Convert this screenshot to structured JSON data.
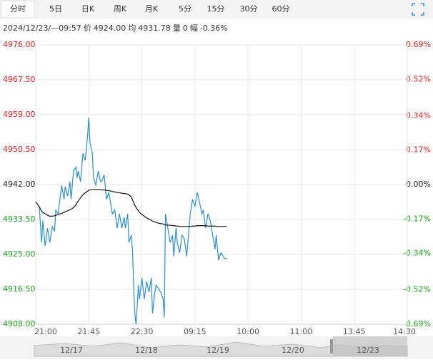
{
  "toolbar": {
    "tabs": [
      "分时",
      "5日",
      "日K",
      "周K",
      "月K",
      "5分",
      "15分",
      "30分",
      "60分"
    ]
  },
  "info": {
    "time": "2024/12/23/—09:57",
    "price_label": "价",
    "price": "4924.00",
    "avg_label": "均",
    "avg": "4931.78",
    "vol_label": "量",
    "vol": "0",
    "amp_label": "幅",
    "amp": "-0.36%"
  },
  "navigator": {
    "dates": [
      "12/17",
      "12/18",
      "12/19",
      "12/20",
      "12/23"
    ]
  },
  "chart_data": {
    "type": "line",
    "x": [
      0,
      3,
      5,
      6,
      8,
      10,
      12,
      14,
      16,
      17,
      19,
      22,
      24,
      25,
      27,
      29,
      30,
      32,
      34,
      35,
      36,
      38,
      40,
      42,
      44,
      45,
      46,
      48,
      49,
      51,
      53,
      55,
      56,
      58,
      60,
      62,
      64,
      65,
      67,
      69,
      71,
      73,
      75,
      76,
      78,
      79,
      81,
      82,
      83,
      84,
      85,
      86,
      87,
      88,
      90,
      92,
      94,
      96,
      98,
      99,
      101,
      102,
      104,
      106,
      108,
      109,
      110,
      112,
      114,
      116,
      117,
      119,
      120,
      122,
      124,
      126,
      128,
      130,
      131,
      133,
      135,
      137,
      139,
      141,
      142,
      144,
      146,
      148,
      150,
      152,
      153,
      155,
      157,
      159,
      160,
      162
    ],
    "series": [
      {
        "color": "#2b8fd1",
        "values": [
          4937.8,
          4936.6,
          4927.9,
          4933.2,
          4927.1,
          4931.4,
          4927.9,
          4931.8,
          4930.6,
          4935.8,
          4934.9,
          4941.8,
          4938.4,
          4941.5,
          4939.2,
          4942.7,
          4938.4,
          4945.3,
          4946.2,
          4943.6,
          4945.3,
          4942.7,
          4949.6,
          4947.9,
          4954.0,
          4958.3,
          4952.2,
          4949.6,
          4943.6,
          4941.8,
          4945.3,
          4942.7,
          4942.7,
          4944.4,
          4938.4,
          4940.1,
          4936.6,
          4934.9,
          4935.8,
          4931.4,
          4934.9,
          4931.4,
          4934.0,
          4931.4,
          4934.9,
          4927.9,
          4929.7,
          4926.2,
          4917.5,
          4910.6,
          4908.0,
          4912.3,
          4917.5,
          4914.1,
          4919.3,
          4914.1,
          4918.4,
          4915.8,
          4919.3,
          4910.6,
          4915.8,
          4917.5,
          4916.7,
          4915.8,
          4914.1,
          4909.7,
          4934.9,
          4931.4,
          4927.9,
          4929.7,
          4924.5,
          4931.4,
          4927.9,
          4925.4,
          4929.7,
          4928.8,
          4924.5,
          4931.4,
          4934.9,
          4938.4,
          4936.6,
          4940.1,
          4937.5,
          4934.9,
          4935.8,
          4931.4,
          4934.9,
          4933.2,
          4929.7,
          4926.2,
          4929.7,
          4923.6,
          4925.4,
          4924.5,
          4924.0,
          4924.0
        ]
      },
      {
        "color": "#111111",
        "values": [
          4937.8,
          4936.6,
          4935.5,
          4935.2,
          4934.9,
          4934.5,
          4934.3,
          4934.3,
          4934.4,
          4934.5,
          4934.7,
          4935.0,
          4935.2,
          4935.4,
          4935.6,
          4935.9,
          4936.0,
          4936.4,
          4937.0,
          4937.5,
          4938.0,
          4938.8,
          4939.5,
          4940.0,
          4940.4,
          4940.6,
          4940.7,
          4940.8,
          4940.8,
          4940.8,
          4940.8,
          4940.8,
          4940.7,
          4940.7,
          4940.6,
          4940.5,
          4940.4,
          4940.3,
          4940.2,
          4940.1,
          4940.0,
          4939.9,
          4939.8,
          4939.8,
          4939.7,
          4939.5,
          4939.0,
          4938.3,
          4937.6,
          4937.0,
          4936.5,
          4936.0,
          4935.6,
          4935.2,
          4934.7,
          4934.3,
          4933.9,
          4933.6,
          4933.3,
          4933.1,
          4932.9,
          4932.8,
          4932.6,
          4932.5,
          4932.4,
          4932.3,
          4932.2,
          4932.1,
          4932.1,
          4932.0,
          4932.0,
          4931.9,
          4931.9,
          4931.8,
          4931.8,
          4931.8,
          4931.8,
          4931.8,
          4931.8,
          4931.9,
          4931.9,
          4932.0,
          4932.0,
          4932.0,
          4932.0,
          4932.0,
          4931.9,
          4931.9,
          4931.9,
          4931.9,
          4931.8,
          4931.8,
          4931.8,
          4931.8,
          4931.8,
          4931.8
        ]
      }
    ],
    "xlim": [
      0,
      315
    ],
    "xticks": [
      {
        "value": 0,
        "label": "21:00"
      },
      {
        "value": 45,
        "label": "21:45"
      },
      {
        "value": 90,
        "label": "22:30"
      },
      {
        "value": 135,
        "label": "09:15"
      },
      {
        "value": 180,
        "label": "10:00"
      },
      {
        "value": 225,
        "label": "11:00"
      },
      {
        "value": 270,
        "label": "13:45"
      },
      {
        "value": 315,
        "label": "14:30"
      }
    ],
    "ylim": [
      4908,
      4976
    ],
    "yticks": [
      {
        "value": 4976,
        "label": "4976.00"
      },
      {
        "value": 4967.5,
        "label": "4967.50"
      },
      {
        "value": 4959,
        "label": "4959.00"
      },
      {
        "value": 4950.5,
        "label": "4950.50"
      },
      {
        "value": 4942,
        "label": "4942.00"
      },
      {
        "value": 4933.5,
        "label": "4933.50"
      },
      {
        "value": 4925,
        "label": "4925.00"
      },
      {
        "value": 4916.5,
        "label": "4916.50"
      },
      {
        "value": 4908,
        "label": "4908.00"
      }
    ],
    "y2lim": [
      -0.69,
      0.69
    ],
    "y2ticks": [
      {
        "value": 0.69,
        "label": "0.69%"
      },
      {
        "value": 0.52,
        "label": "0.52%"
      },
      {
        "value": 0.34,
        "label": "0.34%"
      },
      {
        "value": 0.17,
        "label": "0.17%"
      },
      {
        "value": 0,
        "label": "0.00%"
      },
      {
        "value": -0.17,
        "label": "-0.17%"
      },
      {
        "value": -0.34,
        "label": "-0.34%"
      },
      {
        "value": -0.52,
        "label": "-0.52%"
      },
      {
        "value": -0.69,
        "label": "-0.69%"
      }
    ],
    "grid": true
  }
}
